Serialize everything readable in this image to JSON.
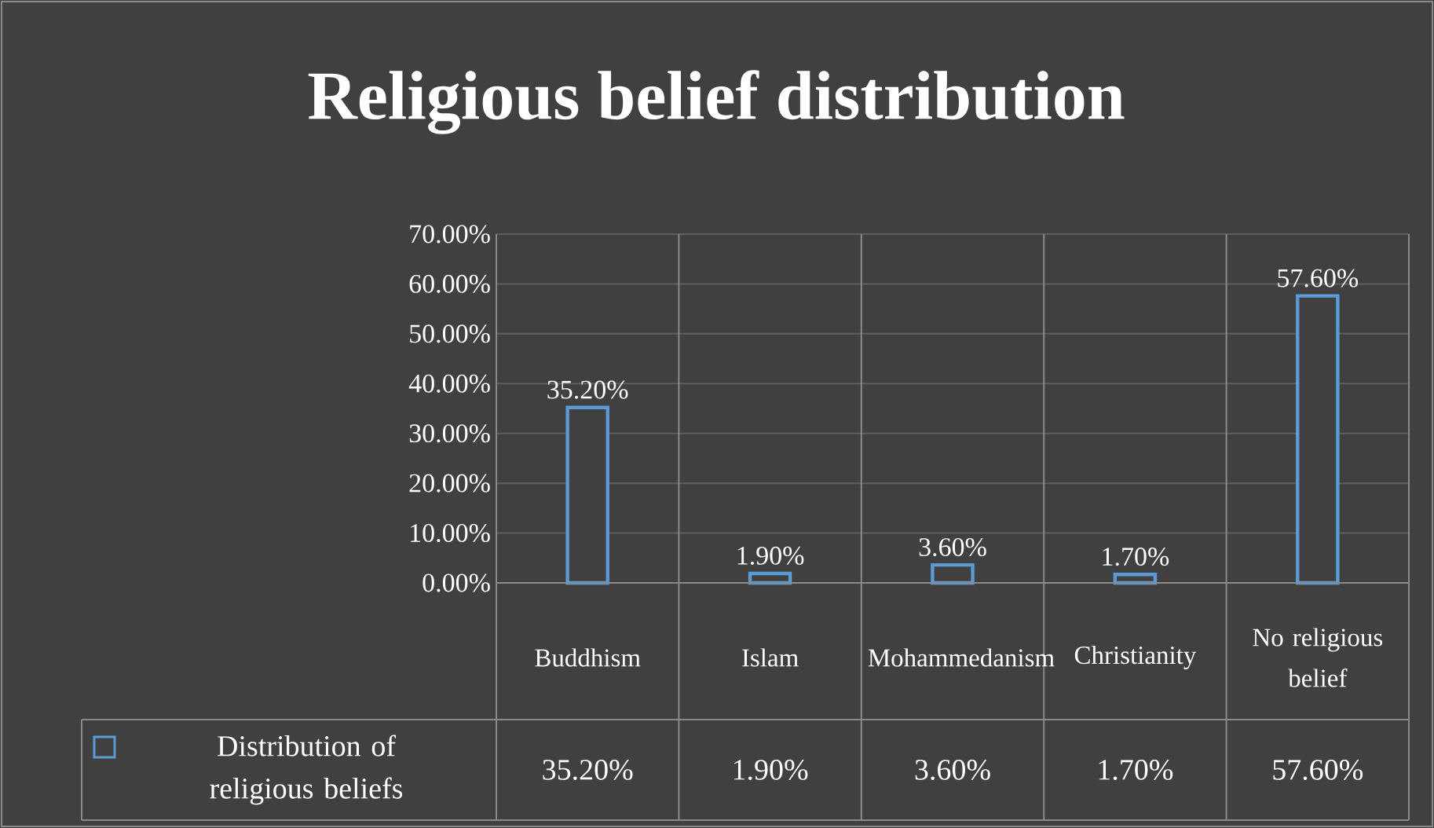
{
  "chart_data": {
    "type": "bar",
    "title": "Religious belief distribution",
    "categories": [
      "Buddhism",
      "Islam",
      "Mohammedanism",
      "Christianity",
      "No religious belief"
    ],
    "series": [
      {
        "name": "Distribution of religious beliefs",
        "color": "#5b9bd5",
        "values": [
          35.2,
          1.9,
          3.6,
          1.7,
          57.6
        ],
        "value_labels": [
          "35.20%",
          "1.90%",
          "3.60%",
          "1.70%",
          "57.60%"
        ]
      }
    ],
    "ylim": [
      0,
      70
    ],
    "yticks": [
      {
        "value": 0,
        "label": "0.00%"
      },
      {
        "value": 10,
        "label": "10.00%"
      },
      {
        "value": 20,
        "label": "20.00%"
      },
      {
        "value": 30,
        "label": "30.00%"
      },
      {
        "value": 40,
        "label": "40.00%"
      },
      {
        "value": 50,
        "label": "50.00%"
      },
      {
        "value": 60,
        "label": "60.00%"
      },
      {
        "value": 70,
        "label": "70.00%"
      }
    ],
    "grid": "y",
    "legend": "bottom"
  }
}
